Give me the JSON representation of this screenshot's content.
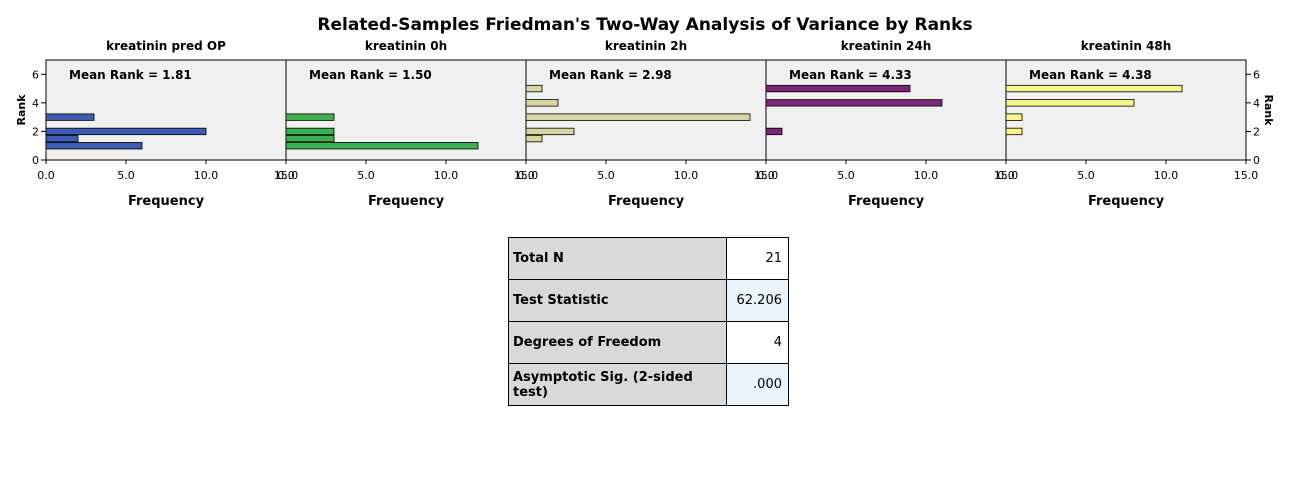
{
  "chart_data": {
    "type": "bar",
    "title": "Related-Samples Friedman's Two-Way Analysis of Variance by Ranks",
    "ylabel": "Rank",
    "xlabel": "Frequency",
    "xlim": [
      0,
      15
    ],
    "ylim": [
      0,
      7
    ],
    "xticks": [
      "0.0",
      "5.0",
      "10.0",
      "15.0"
    ],
    "yticks": [
      "0",
      "2",
      "4",
      "6"
    ],
    "grid": false,
    "panels": [
      {
        "name": "kreatinin pred OP",
        "mean_rank_label": "Mean Rank = 1.81",
        "color": "#3f5cb5",
        "bars": [
          {
            "rank": 1,
            "frequency": 6
          },
          {
            "rank": 1.5,
            "frequency": 2
          },
          {
            "rank": 2,
            "frequency": 10
          },
          {
            "rank": 3,
            "frequency": 3
          }
        ]
      },
      {
        "name": "kreatinin 0h",
        "mean_rank_label": "Mean Rank = 1.50",
        "color": "#3cb04e",
        "bars": [
          {
            "rank": 1,
            "frequency": 12
          },
          {
            "rank": 1.5,
            "frequency": 3
          },
          {
            "rank": 2,
            "frequency": 3
          },
          {
            "rank": 3,
            "frequency": 3
          }
        ]
      },
      {
        "name": "kreatinin 2h",
        "mean_rank_label": "Mean Rank = 2.98",
        "color": "#d9d4a4",
        "bars": [
          {
            "rank": 1.5,
            "frequency": 1
          },
          {
            "rank": 2,
            "frequency": 3
          },
          {
            "rank": 3,
            "frequency": 14
          },
          {
            "rank": 4,
            "frequency": 2
          },
          {
            "rank": 5,
            "frequency": 1
          }
        ]
      },
      {
        "name": "kreatinin 24h",
        "mean_rank_label": "Mean Rank = 4.33",
        "color": "#7d2478",
        "bars": [
          {
            "rank": 2,
            "frequency": 1
          },
          {
            "rank": 4,
            "frequency": 11
          },
          {
            "rank": 5,
            "frequency": 9
          }
        ]
      },
      {
        "name": "kreatinin 48h",
        "mean_rank_label": "Mean Rank = 4.38",
        "color": "#f7f58a",
        "bars": [
          {
            "rank": 2,
            "frequency": 1
          },
          {
            "rank": 3,
            "frequency": 1
          },
          {
            "rank": 4,
            "frequency": 8
          },
          {
            "rank": 5,
            "frequency": 11
          }
        ]
      }
    ]
  },
  "stats": {
    "rows": [
      {
        "label": "Total N",
        "value": "21"
      },
      {
        "label": "Test Statistic",
        "value": "62.206"
      },
      {
        "label": "Degrees of Freedom",
        "value": "4"
      },
      {
        "label": "Asymptotic Sig. (2-sided test)",
        "value": ".000"
      }
    ]
  }
}
